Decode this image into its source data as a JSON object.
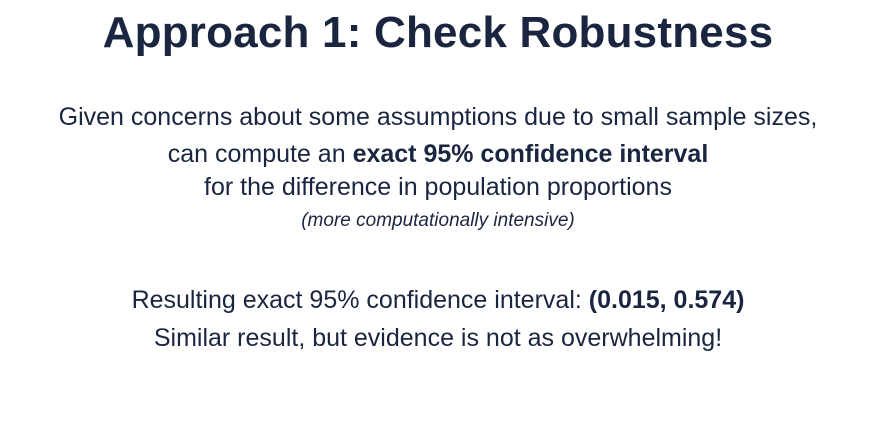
{
  "slide": {
    "title": "Approach 1: Check Robustness",
    "intro": {
      "line1": "Given concerns about some assumptions due to small sample sizes,",
      "line2_prefix": "can compute an ",
      "line2_bold": "exact 95% confidence interval",
      "line3": "for the difference in population proportions",
      "note": "(more computationally intensive)"
    },
    "result": {
      "label": "Resulting exact 95% confidence interval: ",
      "interval": "(0.015, 0.574)",
      "conclusion": "Similar result, but evidence is not as overwhelming!"
    }
  }
}
